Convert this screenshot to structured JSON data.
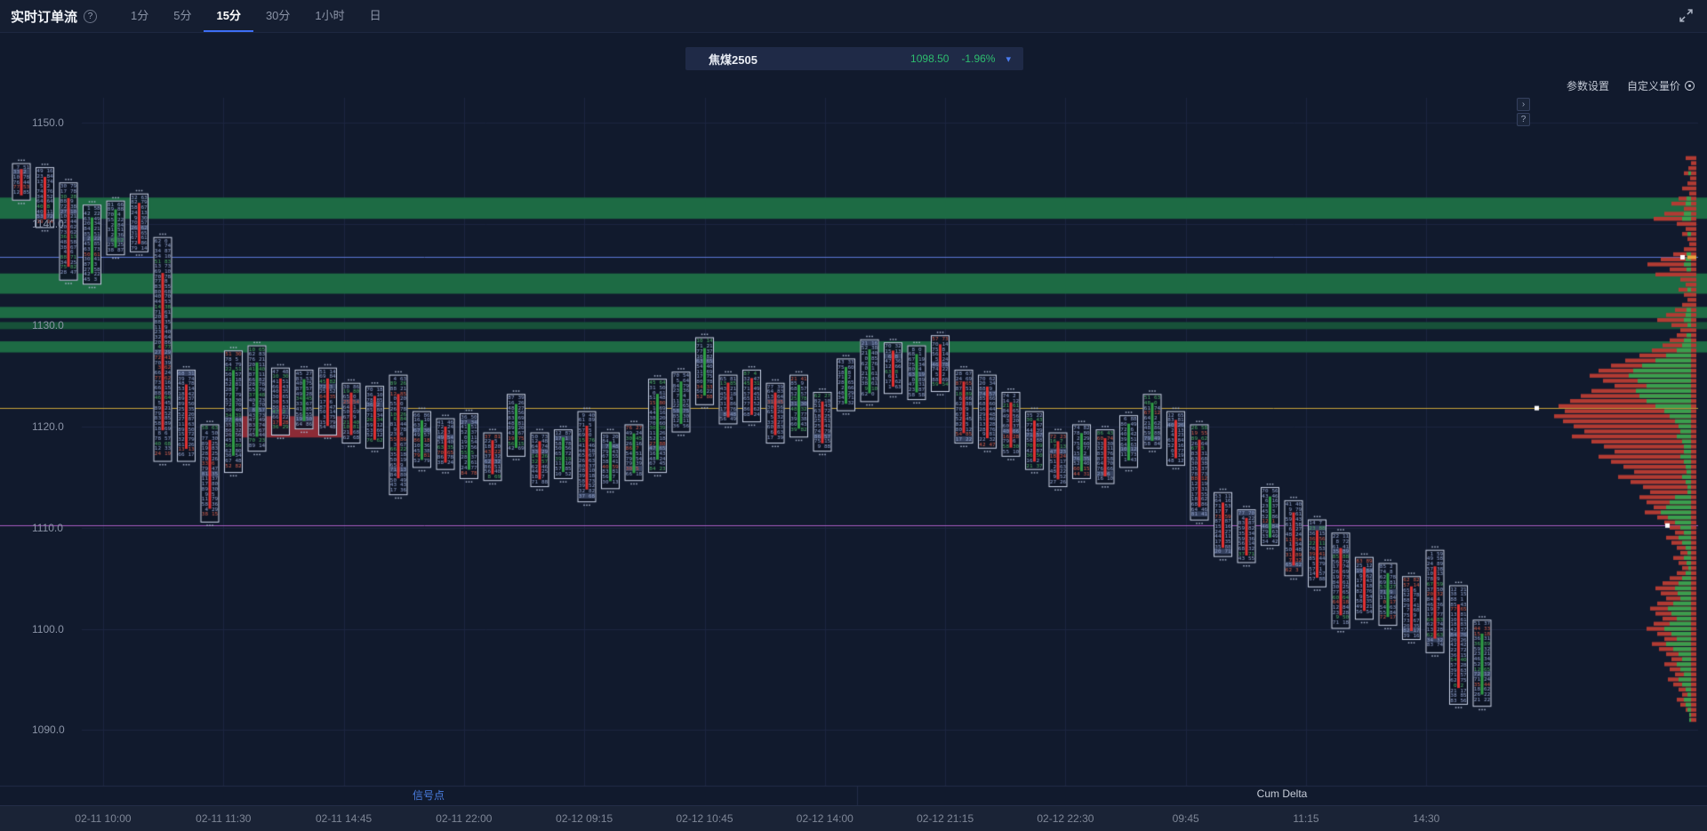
{
  "header": {
    "title": "实时订单流",
    "help_icon": "?",
    "tabs": [
      {
        "label": "1分",
        "active": false
      },
      {
        "label": "5分",
        "active": false
      },
      {
        "label": "15分",
        "active": true
      },
      {
        "label": "30分",
        "active": false
      },
      {
        "label": "1小时",
        "active": false
      },
      {
        "label": "日",
        "active": false
      }
    ]
  },
  "symbol_bar": {
    "name": "焦煤2505",
    "price": "1098.50",
    "change": "-1.96%"
  },
  "toolbar": {
    "settings": "参数设置",
    "custom_volume": "自定义量价"
  },
  "side_buttons": {
    "collapse": "›",
    "help": "?"
  },
  "panels": {
    "signal": "信号点",
    "cum_delta": "Cum Delta"
  },
  "colors": {
    "up": "#2f9e44",
    "down": "#e03131",
    "band_green": "#1d6b44",
    "band_green_dark": "#175139",
    "band_red": "#8c2b36",
    "line_blue": "#5d78d8",
    "line_yellow": "#c9a53a",
    "line_purple": "#a85cc2",
    "profile_red": "#b23b33",
    "profile_green": "#3b9e4e",
    "candle_border": "#cdd6ea",
    "candle_text": "#93a4cf",
    "grid": "#1c2640",
    "price_green": "#2ebd6e",
    "accent_blue": "#3d6ef5"
  },
  "chart_data": {
    "type": "footprint-orderflow",
    "title": "实时订单流 15分 焦煤2505",
    "price_axis": {
      "ticks": [
        1150.0,
        1140.0,
        1130.0,
        1120.0,
        1110.0,
        1100.0,
        1090.0
      ],
      "visible_range": [
        1086,
        1152
      ]
    },
    "time_ticks": [
      "02-11 10:00",
      "02-11 11:30",
      "02-11 14:45",
      "02-11 22:00",
      "02-12 09:15",
      "02-12 10:45",
      "02-12 14:00",
      "02-12 21:15",
      "02-12 22:30",
      "09:45",
      "11:15",
      "14:30"
    ],
    "hlines": [
      {
        "price": 1136.7,
        "color_key": "line_blue"
      },
      {
        "price": 1121.8,
        "color_key": "line_yellow"
      },
      {
        "price": 1110.2,
        "color_key": "line_purple"
      }
    ],
    "green_bands": [
      {
        "from": 1142.6,
        "to": 1140.5,
        "shade": "normal"
      },
      {
        "from": 1135.1,
        "to": 1133.1,
        "shade": "normal"
      },
      {
        "from": 1131.8,
        "to": 1130.7,
        "shade": "normal"
      },
      {
        "from": 1130.3,
        "to": 1129.6,
        "shade": "dark"
      },
      {
        "from": 1128.4,
        "to": 1127.3,
        "shade": "normal"
      }
    ],
    "red_band": {
      "from": 1121.0,
      "to": 1118.9,
      "start_candle": 8.7,
      "end_candle": 13.9
    },
    "candles": [
      [
        1146.0,
        1142.3,
        -1
      ],
      [
        1145.6,
        1139.6,
        -1
      ],
      [
        1144.1,
        1134.4,
        -1
      ],
      [
        1141.9,
        1134.0,
        1
      ],
      [
        1142.3,
        1136.9,
        1
      ],
      [
        1143.0,
        1137.2,
        -1
      ],
      [
        1138.7,
        1116.5,
        -1
      ],
      [
        1125.6,
        1116.5,
        -1
      ],
      [
        1120.2,
        1110.5,
        -1
      ],
      [
        1127.5,
        1115.4,
        1
      ],
      [
        1128.0,
        1117.5,
        1
      ],
      [
        1125.8,
        1119.1,
        -1
      ],
      [
        1125.6,
        1119.7,
        1
      ],
      [
        1125.8,
        1119.1,
        -1
      ],
      [
        1124.3,
        1118.3,
        -1
      ],
      [
        1124.0,
        1117.8,
        -1
      ],
      [
        1125.1,
        1113.2,
        -1
      ],
      [
        1121.5,
        1115.9,
        1
      ],
      [
        1120.8,
        1115.7,
        -1
      ],
      [
        1121.3,
        1114.8,
        1
      ],
      [
        1119.4,
        1114.6,
        -1
      ],
      [
        1123.2,
        1117.0,
        1
      ],
      [
        1119.4,
        1114.0,
        -1
      ],
      [
        1119.7,
        1114.8,
        1
      ],
      [
        1121.5,
        1112.5,
        -1
      ],
      [
        1119.4,
        1113.8,
        1
      ],
      [
        1120.2,
        1114.6,
        1
      ],
      [
        1124.7,
        1115.4,
        1
      ],
      [
        1125.4,
        1119.4,
        1
      ],
      [
        1128.8,
        1122.1,
        1
      ],
      [
        1125.1,
        1120.2,
        -1
      ],
      [
        1125.6,
        1120.4,
        -1
      ],
      [
        1124.3,
        1118.3,
        -1
      ],
      [
        1125.1,
        1118.9,
        1
      ],
      [
        1123.4,
        1117.5,
        -1
      ],
      [
        1126.7,
        1121.5,
        1
      ],
      [
        1128.6,
        1122.4,
        1
      ],
      [
        1128.3,
        1123.2,
        -1
      ],
      [
        1128.0,
        1122.6,
        1
      ],
      [
        1129.0,
        1123.4,
        -1
      ],
      [
        1125.6,
        1118.3,
        -1
      ],
      [
        1125.1,
        1117.8,
        -1
      ],
      [
        1123.4,
        1117.0,
        -1
      ],
      [
        1121.5,
        1115.7,
        -1
      ],
      [
        1119.4,
        1114.0,
        -1
      ],
      [
        1120.2,
        1114.8,
        1
      ],
      [
        1119.7,
        1114.3,
        -1
      ],
      [
        1121.1,
        1115.9,
        1
      ],
      [
        1123.2,
        1117.8,
        1
      ],
      [
        1121.5,
        1116.1,
        -1
      ],
      [
        1120.2,
        1110.7,
        -1
      ],
      [
        1113.5,
        1107.1,
        -1
      ],
      [
        1111.8,
        1106.5,
        -1
      ],
      [
        1114.0,
        1108.2,
        1
      ],
      [
        1112.7,
        1105.2,
        -1
      ],
      [
        1110.8,
        1104.1,
        -1
      ],
      [
        1109.5,
        1100.0,
        -1
      ],
      [
        1107.1,
        1100.9,
        -1
      ],
      [
        1106.5,
        1100.3,
        1
      ],
      [
        1105.2,
        1098.9,
        -1
      ],
      [
        1107.8,
        1097.6,
        -1
      ],
      [
        1104.3,
        1092.5,
        -1
      ],
      [
        1100.9,
        1092.3,
        1
      ]
    ],
    "volume_profile": {
      "top": 1146.5,
      "step": 0.5,
      "rows": [
        [
          12,
          0
        ],
        [
          6,
          0
        ],
        [
          9,
          0
        ],
        [
          14,
          3
        ],
        [
          7,
          0
        ],
        [
          10,
          0
        ],
        [
          16,
          0
        ],
        [
          8,
          0
        ],
        [
          20,
          5
        ],
        [
          28,
          6
        ],
        [
          14,
          0
        ],
        [
          36,
          8
        ],
        [
          48,
          10
        ],
        [
          22,
          0
        ],
        [
          12,
          0
        ],
        [
          16,
          4
        ],
        [
          10,
          0
        ],
        [
          8,
          0
        ],
        [
          14,
          0
        ],
        [
          26,
          5
        ],
        [
          40,
          6
        ],
        [
          55,
          8
        ],
        [
          30,
          5
        ],
        [
          46,
          0
        ],
        [
          18,
          0
        ],
        [
          12,
          0
        ],
        [
          20,
          4
        ],
        [
          14,
          0
        ],
        [
          10,
          0
        ],
        [
          16,
          0
        ],
        [
          24,
          5
        ],
        [
          34,
          6
        ],
        [
          44,
          8
        ],
        [
          28,
          4
        ],
        [
          18,
          0
        ],
        [
          22,
          5
        ],
        [
          30,
          8
        ],
        [
          38,
          10
        ],
        [
          50,
          16
        ],
        [
          64,
          28
        ],
        [
          80,
          40
        ],
        [
          96,
          55
        ],
        [
          110,
          65
        ],
        [
          120,
          70
        ],
        [
          105,
          60
        ],
        [
          92,
          50
        ],
        [
          118,
          62
        ],
        [
          130,
          58
        ],
        [
          142,
          50
        ],
        [
          155,
          40
        ],
        [
          148,
          30
        ],
        [
          160,
          24
        ],
        [
          150,
          18
        ],
        [
          138,
          14
        ],
        [
          126,
          12
        ],
        [
          140,
          16
        ],
        [
          118,
          10
        ],
        [
          104,
          8
        ],
        [
          92,
          8
        ],
        [
          110,
          12
        ],
        [
          96,
          8
        ],
        [
          82,
          6
        ],
        [
          70,
          5
        ],
        [
          88,
          10
        ],
        [
          74,
          6
        ],
        [
          60,
          4
        ],
        [
          52,
          4
        ],
        [
          64,
          18
        ],
        [
          56,
          24
        ],
        [
          48,
          28
        ],
        [
          58,
          34
        ],
        [
          44,
          26
        ],
        [
          36,
          18
        ],
        [
          30,
          12
        ],
        [
          24,
          8
        ],
        [
          34,
          14
        ],
        [
          28,
          10
        ],
        [
          22,
          6
        ],
        [
          18,
          4
        ],
        [
          26,
          8
        ],
        [
          20,
          5
        ],
        [
          16,
          3
        ],
        [
          22,
          6
        ],
        [
          30,
          10
        ],
        [
          38,
          14
        ],
        [
          46,
          18
        ],
        [
          40,
          15
        ],
        [
          34,
          12
        ],
        [
          44,
          20
        ],
        [
          52,
          26
        ],
        [
          46,
          22
        ],
        [
          38,
          16
        ],
        [
          48,
          24
        ],
        [
          56,
          30
        ],
        [
          44,
          22
        ],
        [
          36,
          16
        ],
        [
          50,
          28
        ],
        [
          42,
          20
        ],
        [
          34,
          14
        ],
        [
          28,
          10
        ],
        [
          36,
          16
        ],
        [
          30,
          12
        ],
        [
          24,
          8
        ],
        [
          32,
          14
        ],
        [
          26,
          10
        ],
        [
          20,
          6
        ],
        [
          16,
          4
        ],
        [
          22,
          8
        ],
        [
          18,
          6
        ],
        [
          12,
          4
        ],
        [
          8,
          2
        ],
        [
          6,
          2
        ]
      ]
    }
  }
}
